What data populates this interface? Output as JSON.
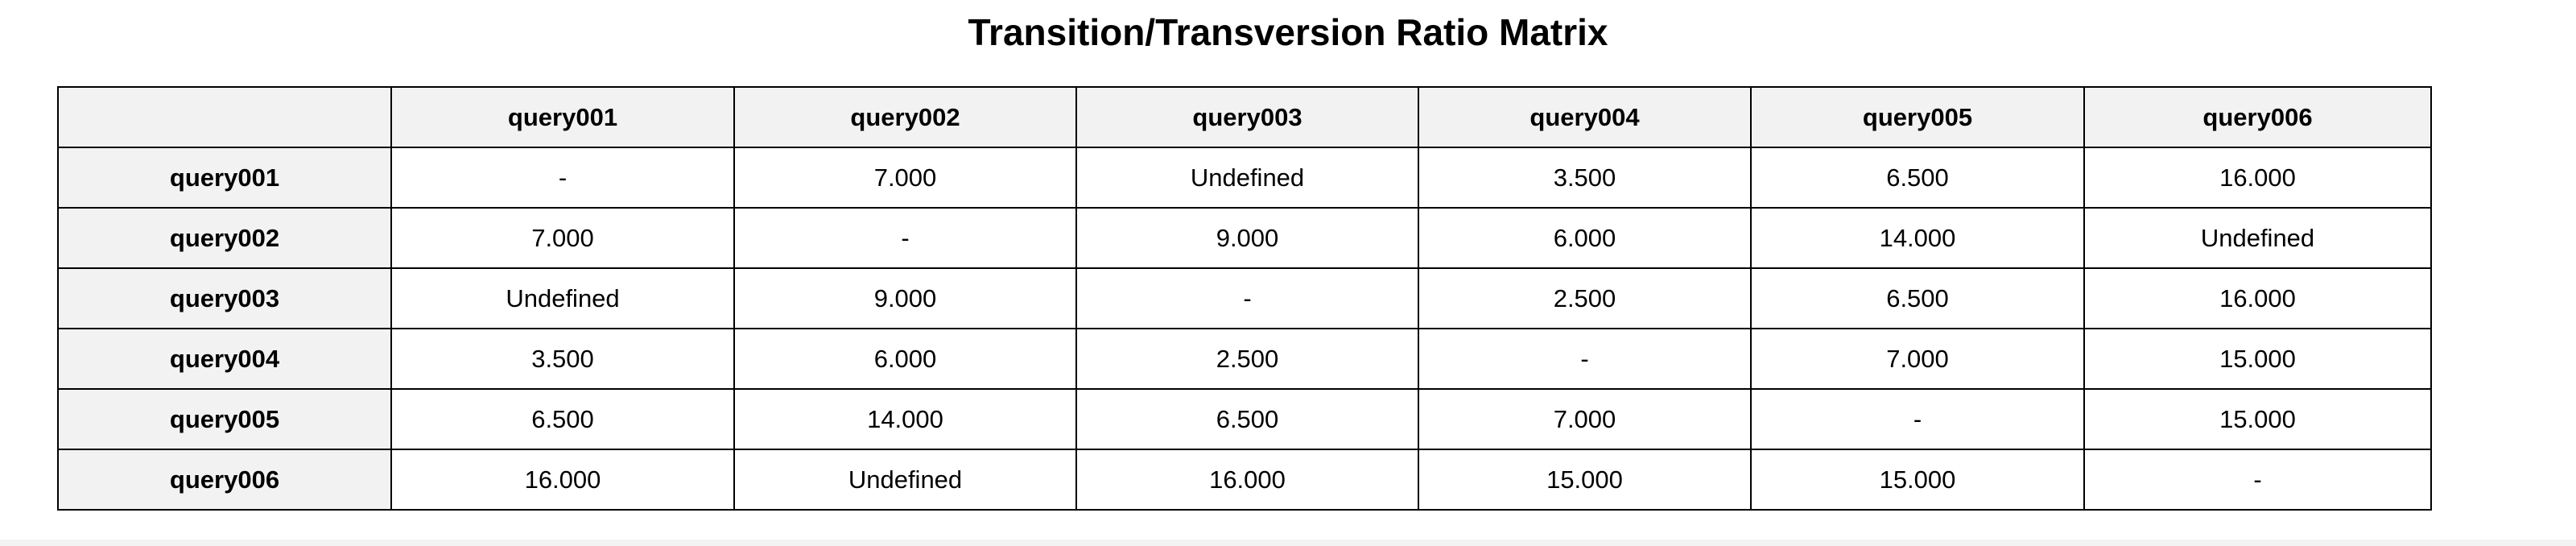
{
  "title": "Transition/Transversion Ratio Matrix",
  "table": {
    "corner": "",
    "columns": [
      "query001",
      "query002",
      "query003",
      "query004",
      "query005",
      "query006"
    ],
    "rows": [
      {
        "label": "query001",
        "cells": [
          "-",
          "7.000",
          "Undefined",
          "3.500",
          "6.500",
          "16.000"
        ]
      },
      {
        "label": "query002",
        "cells": [
          "7.000",
          "-",
          "9.000",
          "6.000",
          "14.000",
          "Undefined"
        ]
      },
      {
        "label": "query003",
        "cells": [
          "Undefined",
          "9.000",
          "-",
          "2.500",
          "6.500",
          "16.000"
        ]
      },
      {
        "label": "query004",
        "cells": [
          "3.500",
          "6.000",
          "2.500",
          "-",
          "7.000",
          "15.000"
        ]
      },
      {
        "label": "query005",
        "cells": [
          "6.500",
          "14.000",
          "6.500",
          "7.000",
          "-",
          "15.000"
        ]
      },
      {
        "label": "query006",
        "cells": [
          "16.000",
          "Undefined",
          "16.000",
          "15.000",
          "15.000",
          "-"
        ]
      }
    ]
  }
}
